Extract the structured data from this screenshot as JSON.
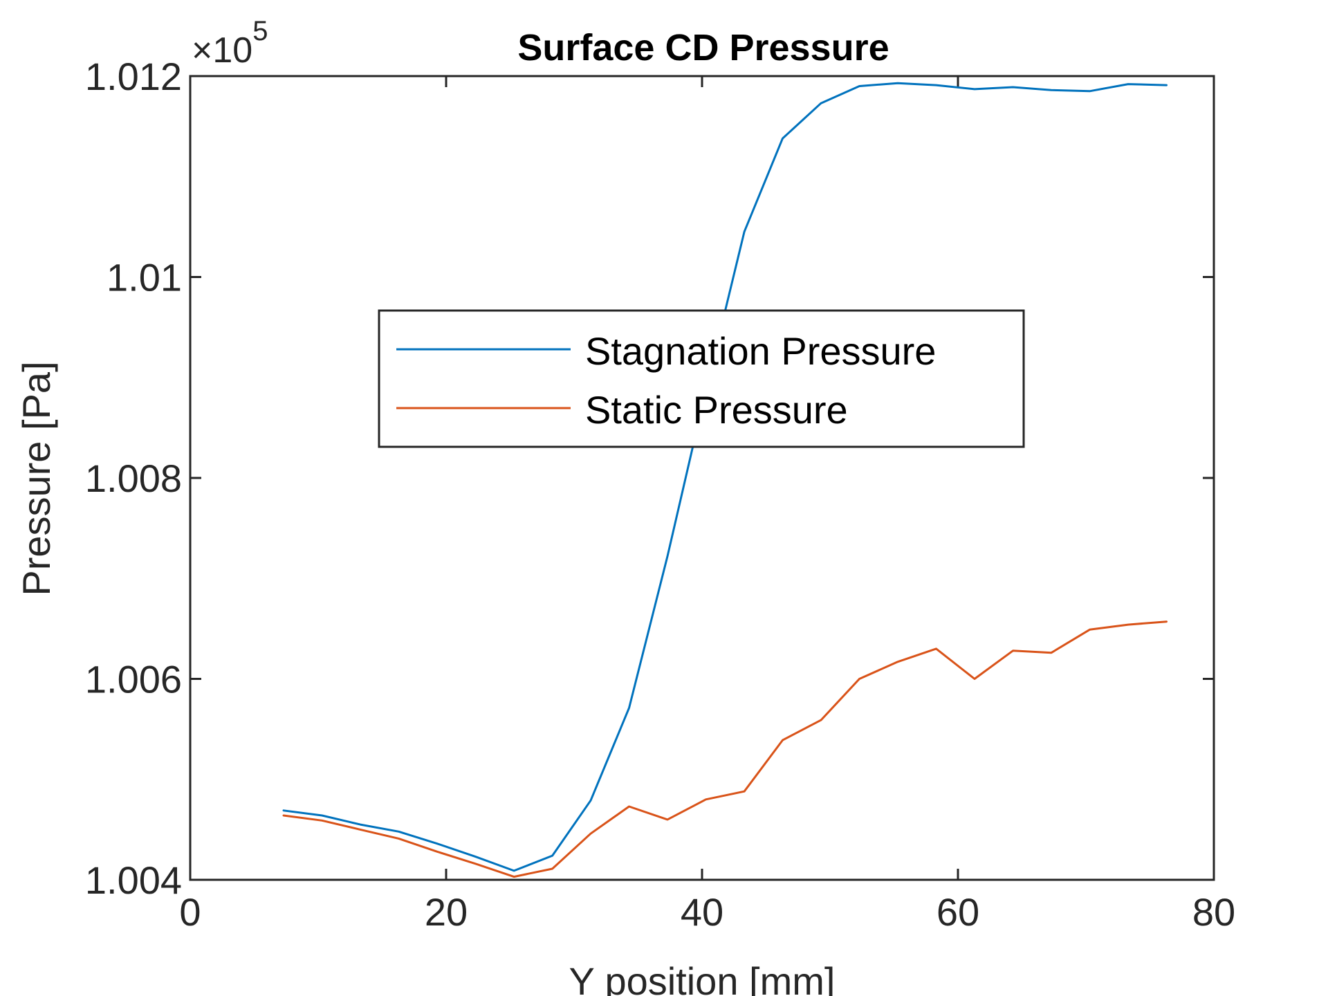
{
  "chart_data": {
    "type": "line",
    "title": "Surface CD Pressure",
    "xlabel": "Y position [mm]",
    "ylabel": "Pressure [Pa]",
    "y_multiplier": "×10",
    "y_multiplier_exponent": "5",
    "xlim": [
      0,
      80
    ],
    "ylim": [
      1.004,
      1.012
    ],
    "x_ticks": [
      0,
      20,
      40,
      60,
      80
    ],
    "x_tick_labels": [
      "0",
      "20",
      "40",
      "60",
      "80"
    ],
    "y_ticks": [
      1.004,
      1.006,
      1.008,
      1.01,
      1.012
    ],
    "y_tick_labels": [
      "1.004",
      "1.006",
      "1.008",
      "1.01",
      "1.012"
    ],
    "grid": false,
    "legend_position": "center",
    "x": [
      7.3,
      10.3,
      13.3,
      16.3,
      19.3,
      22.3,
      25.3,
      28.3,
      31.3,
      34.3,
      37.3,
      40.3,
      43.3,
      46.3,
      49.3,
      52.3,
      55.3,
      58.3,
      61.3,
      64.3,
      67.3,
      70.3,
      73.3,
      76.3
    ],
    "series": [
      {
        "name": "Stagnation Pressure",
        "color": "#0072BD",
        "values": [
          1.00469,
          1.00464,
          1.00455,
          1.00448,
          1.00436,
          1.00423,
          1.00409,
          1.00424,
          1.00479,
          1.00571,
          1.00722,
          1.00887,
          1.01045,
          1.01138,
          1.01173,
          1.0119,
          1.01193,
          1.01191,
          1.01187,
          1.01189,
          1.01186,
          1.01185,
          1.01192,
          1.01191
        ]
      },
      {
        "name": "Static Pressure",
        "color": "#D95319",
        "values": [
          1.00464,
          1.00459,
          1.0045,
          1.00441,
          1.00428,
          1.00416,
          1.00403,
          1.00411,
          1.00446,
          1.00473,
          1.0046,
          1.0048,
          1.00488,
          1.00539,
          1.00559,
          1.006,
          1.00617,
          1.0063,
          1.006,
          1.00628,
          1.00626,
          1.00649,
          1.00654,
          1.00657
        ]
      }
    ]
  }
}
